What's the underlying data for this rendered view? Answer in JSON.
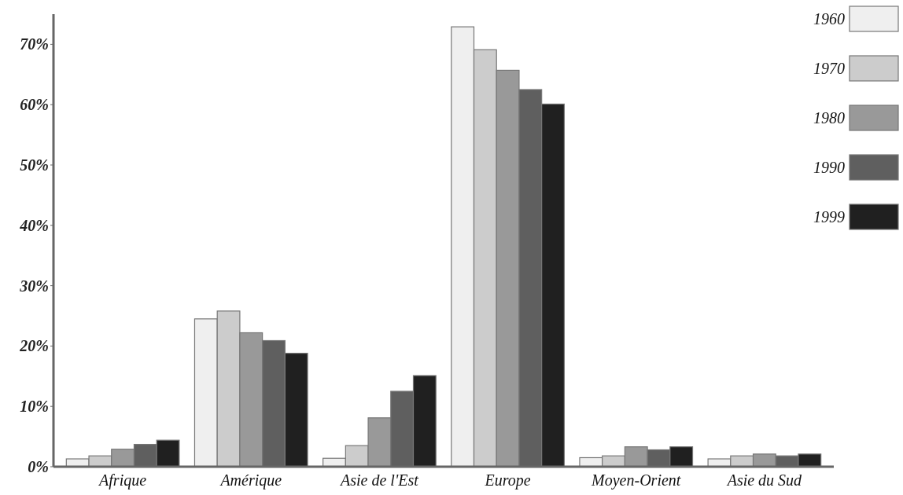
{
  "chart_data": {
    "type": "bar",
    "categories": [
      "Afrique",
      "Amérique",
      "Asie de l'Est",
      "Europe",
      "Moyen-Orient",
      "Asie du Sud"
    ],
    "series": [
      {
        "name": "1960",
        "color": "#efefef",
        "values": [
          1.3,
          24.5,
          1.4,
          72.9,
          1.5,
          1.3
        ]
      },
      {
        "name": "1970",
        "color": "#cccccc",
        "values": [
          1.8,
          25.8,
          3.5,
          69.1,
          1.8,
          1.8
        ]
      },
      {
        "name": "1980",
        "color": "#999999",
        "values": [
          2.9,
          22.2,
          8.1,
          65.7,
          3.3,
          2.1
        ]
      },
      {
        "name": "1990",
        "color": "#5f5f5f",
        "values": [
          3.7,
          20.9,
          12.5,
          62.5,
          2.8,
          1.8
        ]
      },
      {
        "name": "1999",
        "color": "#202020",
        "values": [
          4.4,
          18.8,
          15.1,
          60.1,
          3.3,
          2.1
        ]
      }
    ],
    "ylim": [
      0,
      75
    ],
    "yticks": [
      {
        "value": 0,
        "label": "0%"
      },
      {
        "value": 10,
        "label": "10%"
      },
      {
        "value": 20,
        "label": "20%"
      },
      {
        "value": 30,
        "label": "30%"
      },
      {
        "value": 40,
        "label": "40%"
      },
      {
        "value": 50,
        "label": "50%"
      },
      {
        "value": 60,
        "label": "60%"
      },
      {
        "value": 70,
        "label": "70%"
      }
    ],
    "grid": false,
    "legend": "top right"
  }
}
